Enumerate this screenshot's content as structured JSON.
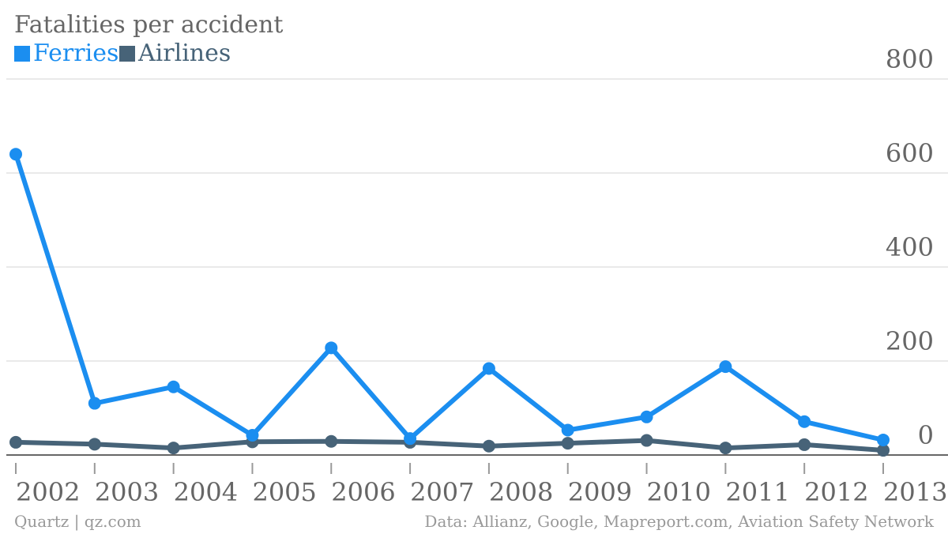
{
  "chart_data": {
    "type": "line",
    "title": "Fatalities per accident",
    "xlabel": "",
    "ylabel": "",
    "x": [
      "2002",
      "2003",
      "2004",
      "2005",
      "2006",
      "2007",
      "2008",
      "2009",
      "2010",
      "2011",
      "2012",
      "2013"
    ],
    "ylim": [
      0,
      800
    ],
    "yticks": [
      "800",
      "600",
      "400",
      "200",
      "0"
    ],
    "grid": true,
    "legend_position": "top-left",
    "series": [
      {
        "name": "Ferries",
        "color": "#1b8ef0",
        "values": [
          640,
          110,
          145,
          42,
          228,
          35,
          184,
          53,
          81,
          188,
          71,
          32
        ]
      },
      {
        "name": "Airlines",
        "color": "#476378",
        "values": [
          27,
          23,
          15,
          28,
          29,
          27,
          19,
          25,
          31,
          15,
          22,
          10
        ]
      }
    ],
    "source": "Data: Allianz, Google, Mapreport.com, Aviation Safety Network",
    "credit": "Quartz | qz.com"
  }
}
